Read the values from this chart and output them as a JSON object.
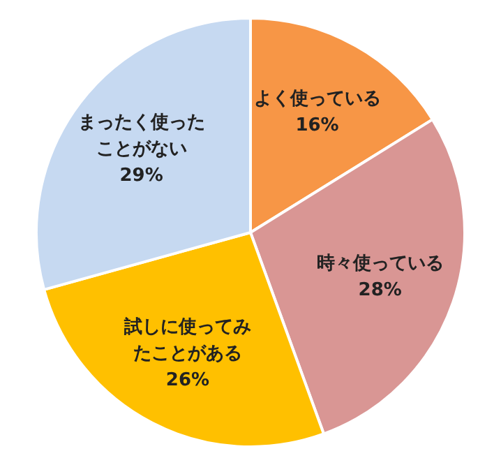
{
  "chart_data": {
    "type": "pie",
    "categories": [
      "よく使っている",
      "時々使っている",
      "試しに使ってみたことがある",
      "まったく使ったことがない"
    ],
    "values": [
      16,
      28,
      26,
      29
    ],
    "value_labels": [
      "16%",
      "28%",
      "26%",
      "29%"
    ],
    "colors": [
      "#f79646",
      "#d99694",
      "#ffc000",
      "#c6d9f1"
    ],
    "legend": false
  }
}
